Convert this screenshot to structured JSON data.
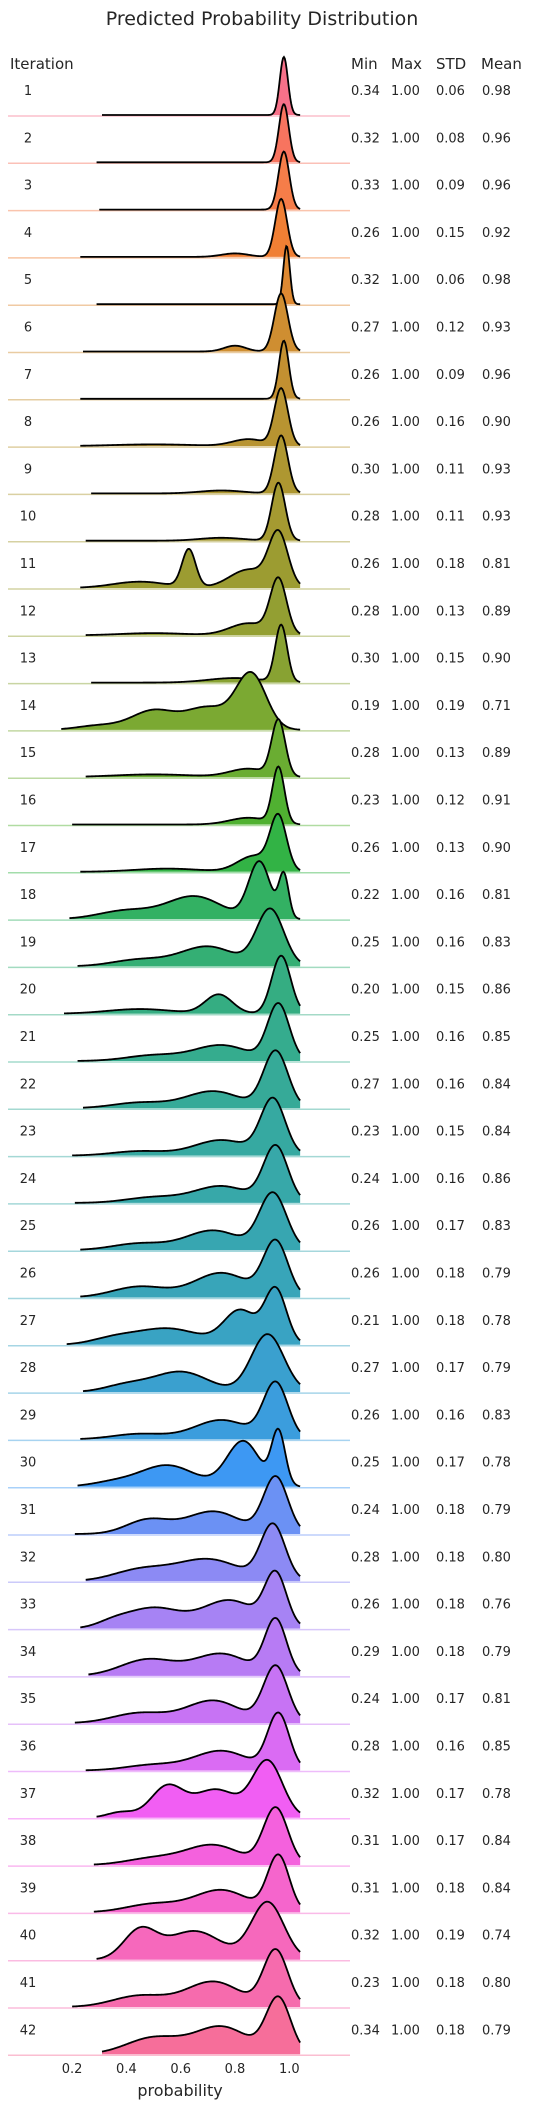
{
  "chart_data": {
    "type": "ridgeline",
    "title": "Predicted Probability Distribution",
    "xlabel": "probability",
    "xlim": [
      0.1,
      1.15
    ],
    "xticks": [
      0.2,
      0.4,
      0.6,
      0.8,
      1.0
    ],
    "xtick_labels": [
      "0.2",
      "0.4",
      "0.6",
      "0.8",
      "1.0"
    ],
    "columns": [
      "Iteration",
      "Min",
      "Max",
      "STD",
      "Mean"
    ],
    "rows": [
      {
        "iteration": "1",
        "min": "0.34",
        "max": "1.00",
        "std": "0.06",
        "mean": "0.98",
        "color": "#f77189",
        "peaks": [
          [
            0.98,
            0.015,
            1.0
          ]
        ]
      },
      {
        "iteration": "2",
        "min": "0.32",
        "max": "1.00",
        "std": "0.08",
        "mean": "0.96",
        "color": "#f7745f",
        "peaks": [
          [
            0.98,
            0.018,
            1.0
          ]
        ]
      },
      {
        "iteration": "3",
        "min": "0.33",
        "max": "1.00",
        "std": "0.09",
        "mean": "0.96",
        "color": "#f57d49",
        "peaks": [
          [
            0.98,
            0.02,
            1.0
          ]
        ]
      },
      {
        "iteration": "4",
        "min": "0.26",
        "max": "1.00",
        "std": "0.15",
        "mean": "0.92",
        "color": "#f07f34",
        "peaks": [
          [
            0.97,
            0.022,
            1.0
          ],
          [
            0.8,
            0.05,
            0.06
          ]
        ]
      },
      {
        "iteration": "5",
        "min": "0.32",
        "max": "1.00",
        "std": "0.06",
        "mean": "0.98",
        "color": "#de8932",
        "peaks": [
          [
            0.99,
            0.012,
            1.0
          ]
        ]
      },
      {
        "iteration": "6",
        "min": "0.27",
        "max": "1.00",
        "std": "0.12",
        "mean": "0.93",
        "color": "#cf8e31",
        "peaks": [
          [
            0.97,
            0.025,
            1.0
          ],
          [
            0.8,
            0.04,
            0.1
          ]
        ]
      },
      {
        "iteration": "7",
        "min": "0.26",
        "max": "1.00",
        "std": "0.09",
        "mean": "0.96",
        "color": "#c39031",
        "peaks": [
          [
            0.98,
            0.018,
            1.0
          ]
        ]
      },
      {
        "iteration": "8",
        "min": "0.26",
        "max": "1.00",
        "std": "0.16",
        "mean": "0.90",
        "color": "#b89431",
        "peaks": [
          [
            0.97,
            0.025,
            1.0
          ],
          [
            0.85,
            0.06,
            0.12
          ],
          [
            0.5,
            0.15,
            0.03
          ]
        ]
      },
      {
        "iteration": "9",
        "min": "0.30",
        "max": "1.00",
        "std": "0.11",
        "mean": "0.93",
        "color": "#ae9731",
        "peaks": [
          [
            0.97,
            0.025,
            1.0
          ],
          [
            0.75,
            0.08,
            0.05
          ]
        ]
      },
      {
        "iteration": "10",
        "min": "0.28",
        "max": "1.00",
        "std": "0.11",
        "mean": "0.93",
        "color": "#a59a31",
        "peaks": [
          [
            0.96,
            0.025,
            1.0
          ],
          [
            0.75,
            0.08,
            0.05
          ]
        ]
      },
      {
        "iteration": "11",
        "min": "0.26",
        "max": "1.00",
        "std": "0.18",
        "mean": "0.81",
        "color": "#9c9c31",
        "peaks": [
          [
            0.96,
            0.035,
            1.0
          ],
          [
            0.63,
            0.025,
            0.72
          ],
          [
            0.85,
            0.07,
            0.35
          ],
          [
            0.45,
            0.1,
            0.12
          ]
        ]
      },
      {
        "iteration": "12",
        "min": "0.28",
        "max": "1.00",
        "std": "0.13",
        "mean": "0.89",
        "color": "#939f32",
        "peaks": [
          [
            0.96,
            0.03,
            1.0
          ],
          [
            0.85,
            0.07,
            0.22
          ],
          [
            0.5,
            0.12,
            0.04
          ]
        ]
      },
      {
        "iteration": "13",
        "min": "0.30",
        "max": "1.00",
        "std": "0.15",
        "mean": "0.90",
        "color": "#88a232",
        "peaks": [
          [
            0.97,
            0.022,
            1.0
          ],
          [
            0.8,
            0.1,
            0.08
          ]
        ]
      },
      {
        "iteration": "14",
        "min": "0.19",
        "max": "1.00",
        "std": "0.19",
        "mean": "0.71",
        "color": "#7ba932",
        "peaks": [
          [
            0.86,
            0.055,
            1.0
          ],
          [
            0.5,
            0.08,
            0.35
          ],
          [
            0.3,
            0.08,
            0.08
          ],
          [
            0.7,
            0.08,
            0.4
          ]
        ]
      },
      {
        "iteration": "15",
        "min": "0.28",
        "max": "1.00",
        "std": "0.13",
        "mean": "0.89",
        "color": "#6aad32",
        "peaks": [
          [
            0.96,
            0.025,
            1.0
          ],
          [
            0.85,
            0.07,
            0.15
          ],
          [
            0.5,
            0.15,
            0.05
          ]
        ]
      },
      {
        "iteration": "16",
        "min": "0.23",
        "max": "1.00",
        "std": "0.12",
        "mean": "0.91",
        "color": "#50b131",
        "peaks": [
          [
            0.96,
            0.022,
            1.0
          ],
          [
            0.85,
            0.07,
            0.12
          ]
        ]
      },
      {
        "iteration": "17",
        "min": "0.26",
        "max": "1.00",
        "std": "0.13",
        "mean": "0.90",
        "color": "#32b345",
        "peaks": [
          [
            0.96,
            0.03,
            1.0
          ],
          [
            0.87,
            0.06,
            0.3
          ],
          [
            0.55,
            0.12,
            0.06
          ]
        ]
      },
      {
        "iteration": "18",
        "min": "0.22",
        "max": "1.00",
        "std": "0.16",
        "mean": "0.81",
        "color": "#33b163",
        "peaks": [
          [
            0.89,
            0.04,
            1.0
          ],
          [
            0.98,
            0.018,
            0.75
          ],
          [
            0.65,
            0.1,
            0.4
          ],
          [
            0.4,
            0.1,
            0.15
          ]
        ]
      },
      {
        "iteration": "19",
        "min": "0.25",
        "max": "1.00",
        "std": "0.16",
        "mean": "0.83",
        "color": "#34af74",
        "peaks": [
          [
            0.93,
            0.05,
            1.0
          ],
          [
            0.7,
            0.1,
            0.35
          ],
          [
            0.45,
            0.1,
            0.12
          ]
        ]
      },
      {
        "iteration": "20",
        "min": "0.20",
        "max": "1.00",
        "std": "0.15",
        "mean": "0.86",
        "color": "#35ad82",
        "peaks": [
          [
            0.97,
            0.035,
            1.0
          ],
          [
            0.74,
            0.05,
            0.33
          ],
          [
            0.45,
            0.12,
            0.08
          ]
        ]
      },
      {
        "iteration": "21",
        "min": "0.25",
        "max": "1.00",
        "std": "0.16",
        "mean": "0.85",
        "color": "#35ac8e",
        "peaks": [
          [
            0.96,
            0.04,
            1.0
          ],
          [
            0.75,
            0.1,
            0.28
          ],
          [
            0.5,
            0.1,
            0.1
          ]
        ]
      },
      {
        "iteration": "22",
        "min": "0.27",
        "max": "1.00",
        "std": "0.16",
        "mean": "0.84",
        "color": "#36aa98",
        "peaks": [
          [
            0.95,
            0.045,
            1.0
          ],
          [
            0.72,
            0.1,
            0.3
          ],
          [
            0.45,
            0.1,
            0.1
          ]
        ]
      },
      {
        "iteration": "23",
        "min": "0.23",
        "max": "1.00",
        "std": "0.15",
        "mean": "0.84",
        "color": "#36a9a1",
        "peaks": [
          [
            0.94,
            0.045,
            1.0
          ],
          [
            0.75,
            0.1,
            0.28
          ],
          [
            0.45,
            0.1,
            0.08
          ]
        ]
      },
      {
        "iteration": "24",
        "min": "0.24",
        "max": "1.00",
        "std": "0.16",
        "mean": "0.86",
        "color": "#37a8a9",
        "peaks": [
          [
            0.95,
            0.045,
            1.0
          ],
          [
            0.75,
            0.1,
            0.3
          ],
          [
            0.5,
            0.1,
            0.1
          ]
        ]
      },
      {
        "iteration": "25",
        "min": "0.26",
        "max": "1.00",
        "std": "0.17",
        "mean": "0.83",
        "color": "#37a6b1",
        "peaks": [
          [
            0.94,
            0.05,
            1.0
          ],
          [
            0.72,
            0.1,
            0.35
          ],
          [
            0.45,
            0.1,
            0.12
          ]
        ]
      },
      {
        "iteration": "26",
        "min": "0.26",
        "max": "1.00",
        "std": "0.18",
        "mean": "0.79",
        "color": "#38a5b9",
        "peaks": [
          [
            0.95,
            0.045,
            1.0
          ],
          [
            0.75,
            0.1,
            0.45
          ],
          [
            0.45,
            0.1,
            0.2
          ]
        ]
      },
      {
        "iteration": "27",
        "min": "0.21",
        "max": "1.00",
        "std": "0.18",
        "mean": "0.78",
        "color": "#39a3c3",
        "peaks": [
          [
            0.95,
            0.04,
            1.0
          ],
          [
            0.82,
            0.06,
            0.62
          ],
          [
            0.55,
            0.12,
            0.3
          ],
          [
            0.35,
            0.08,
            0.1
          ]
        ]
      },
      {
        "iteration": "28",
        "min": "0.27",
        "max": "1.00",
        "std": "0.17",
        "mean": "0.79",
        "color": "#3aa0cf",
        "peaks": [
          [
            0.92,
            0.06,
            1.0
          ],
          [
            0.6,
            0.1,
            0.35
          ],
          [
            0.4,
            0.08,
            0.12
          ]
        ]
      },
      {
        "iteration": "29",
        "min": "0.26",
        "max": "1.00",
        "std": "0.16",
        "mean": "0.83",
        "color": "#3b9ddd",
        "peaks": [
          [
            0.95,
            0.045,
            1.0
          ],
          [
            0.75,
            0.1,
            0.35
          ],
          [
            0.45,
            0.1,
            0.1
          ]
        ]
      },
      {
        "iteration": "30",
        "min": "0.25",
        "max": "1.00",
        "std": "0.17",
        "mean": "0.78",
        "color": "#3d98f3",
        "peaks": [
          [
            0.83,
            0.06,
            0.85
          ],
          [
            0.96,
            0.025,
            1.0
          ],
          [
            0.55,
            0.1,
            0.4
          ],
          [
            0.35,
            0.08,
            0.08
          ]
        ]
      },
      {
        "iteration": "31",
        "min": "0.24",
        "max": "1.00",
        "std": "0.18",
        "mean": "0.79",
        "color": "#6b91f4",
        "peaks": [
          [
            0.95,
            0.045,
            1.0
          ],
          [
            0.72,
            0.1,
            0.4
          ],
          [
            0.48,
            0.08,
            0.25
          ]
        ]
      },
      {
        "iteration": "32",
        "min": "0.28",
        "max": "1.00",
        "std": "0.18",
        "mean": "0.80",
        "color": "#8c8af4",
        "peaks": [
          [
            0.94,
            0.045,
            1.0
          ],
          [
            0.7,
            0.12,
            0.4
          ],
          [
            0.45,
            0.1,
            0.2
          ]
        ]
      },
      {
        "iteration": "33",
        "min": "0.26",
        "max": "1.00",
        "std": "0.18",
        "mean": "0.76",
        "color": "#a683f4",
        "peaks": [
          [
            0.95,
            0.04,
            1.0
          ],
          [
            0.78,
            0.1,
            0.55
          ],
          [
            0.5,
            0.1,
            0.4
          ],
          [
            0.35,
            0.06,
            0.1
          ]
        ]
      },
      {
        "iteration": "34",
        "min": "0.29",
        "max": "1.00",
        "std": "0.18",
        "mean": "0.79",
        "color": "#b77bf4",
        "peaks": [
          [
            0.95,
            0.04,
            1.0
          ],
          [
            0.75,
            0.1,
            0.4
          ],
          [
            0.48,
            0.1,
            0.3
          ]
        ]
      },
      {
        "iteration": "35",
        "min": "0.24",
        "max": "1.00",
        "std": "0.17",
        "mean": "0.81",
        "color": "#c773f4",
        "peaks": [
          [
            0.95,
            0.045,
            1.0
          ],
          [
            0.72,
            0.1,
            0.4
          ],
          [
            0.45,
            0.1,
            0.18
          ]
        ]
      },
      {
        "iteration": "36",
        "min": "0.28",
        "max": "1.00",
        "std": "0.16",
        "mean": "0.85",
        "color": "#da6bf3",
        "peaks": [
          [
            0.96,
            0.04,
            1.0
          ],
          [
            0.75,
            0.1,
            0.35
          ],
          [
            0.5,
            0.1,
            0.1
          ]
        ]
      },
      {
        "iteration": "37",
        "min": "0.32",
        "max": "1.00",
        "std": "0.17",
        "mean": "0.78",
        "color": "#f15ef3",
        "peaks": [
          [
            0.92,
            0.055,
            1.0
          ],
          [
            0.55,
            0.06,
            0.55
          ],
          [
            0.73,
            0.08,
            0.5
          ],
          [
            0.38,
            0.05,
            0.1
          ]
        ]
      },
      {
        "iteration": "38",
        "min": "0.31",
        "max": "1.00",
        "std": "0.17",
        "mean": "0.84",
        "color": "#f461dd",
        "peaks": [
          [
            0.95,
            0.045,
            1.0
          ],
          [
            0.72,
            0.1,
            0.35
          ],
          [
            0.5,
            0.1,
            0.12
          ]
        ]
      },
      {
        "iteration": "39",
        "min": "0.31",
        "max": "1.00",
        "std": "0.18",
        "mean": "0.84",
        "color": "#f565cc",
        "peaks": [
          [
            0.96,
            0.04,
            1.0
          ],
          [
            0.75,
            0.1,
            0.4
          ],
          [
            0.5,
            0.1,
            0.15
          ]
        ]
      },
      {
        "iteration": "40",
        "min": "0.32",
        "max": "1.00",
        "std": "0.19",
        "mean": "0.74",
        "color": "#f668bc",
        "peaks": [
          [
            0.92,
            0.06,
            1.0
          ],
          [
            0.45,
            0.06,
            0.5
          ],
          [
            0.65,
            0.1,
            0.5
          ]
        ]
      },
      {
        "iteration": "41",
        "min": "0.23",
        "max": "1.00",
        "std": "0.18",
        "mean": "0.80",
        "color": "#f66bad",
        "peaks": [
          [
            0.95,
            0.045,
            1.0
          ],
          [
            0.72,
            0.1,
            0.45
          ],
          [
            0.45,
            0.1,
            0.2
          ]
        ]
      },
      {
        "iteration": "42",
        "min": "0.34",
        "max": "1.00",
        "std": "0.18",
        "mean": "0.79",
        "color": "#f66e9a",
        "peaks": [
          [
            0.96,
            0.045,
            1.0
          ],
          [
            0.75,
            0.1,
            0.5
          ],
          [
            0.5,
            0.1,
            0.3
          ]
        ]
      }
    ]
  }
}
